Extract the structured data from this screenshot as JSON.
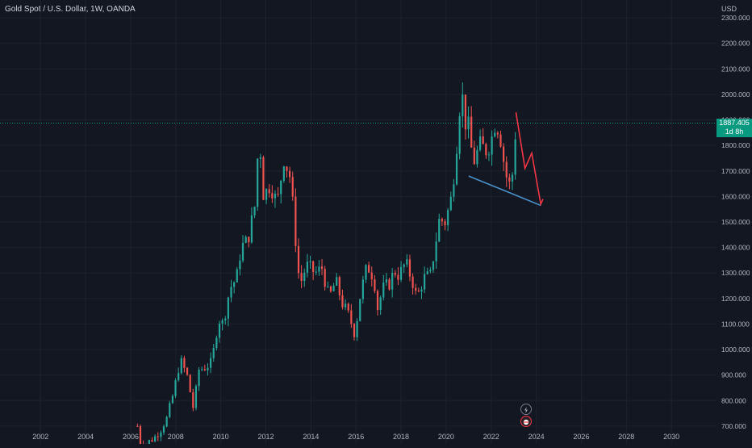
{
  "header": {
    "title": "Gold Spot / U.S. Dollar, 1W, OANDA",
    "currency": "USD"
  },
  "last_price": {
    "value": "1887.405",
    "countdown": "1d 8h",
    "level": 1887.405
  },
  "icons": {
    "lightning": "lightning-icon",
    "alert": "alert-icon"
  },
  "colors": {
    "up": "#26a69a",
    "down": "#ef5350",
    "tag": "#089981",
    "trend": "#4a90c8",
    "projection": "#f23645"
  },
  "chart_data": {
    "type": "line",
    "title": "Gold Spot / U.S. Dollar, 1W, OANDA",
    "ylabel": "USD",
    "xlim": [
      2000.2,
      2032.0
    ],
    "ylim": [
      630,
      2370
    ],
    "x_ticks": [
      "2002",
      "2004",
      "2006",
      "2008",
      "2010",
      "2012",
      "2014",
      "2016",
      "2018",
      "2020",
      "2022",
      "2024",
      "2026",
      "2028",
      "2030"
    ],
    "y_ticks": [
      "700.000",
      "800.000",
      "900.000",
      "1000.000",
      "1100.000",
      "1200.000",
      "1300.000",
      "1400.000",
      "1500.000",
      "1600.000",
      "1700.000",
      "1800.000",
      "1900.000",
      "2000.000",
      "2100.000",
      "2200.000",
      "2300.000"
    ],
    "series": [
      {
        "x": [
          2006.3,
          2006.4,
          2006.6,
          2006.8,
          2007.0,
          2007.3,
          2007.6,
          2007.9,
          2008.2,
          2008.5,
          2008.8,
          2009.0,
          2009.3,
          2009.6,
          2009.9,
          2010.1,
          2010.4,
          2010.7,
          2010.9,
          2011.2,
          2011.5,
          2011.7,
          2011.9,
          2012.2,
          2012.5,
          2012.8,
          2013.1,
          2013.3,
          2013.5,
          2013.8,
          2014.2,
          2014.5,
          2014.8,
          2015.1,
          2015.4,
          2015.7,
          2015.95,
          2016.2,
          2016.5,
          2016.8,
          2016.95,
          2017.2,
          2017.5,
          2017.7,
          2017.9,
          2018.2,
          2018.5,
          2018.7,
          2019.0,
          2019.3,
          2019.5,
          2019.7,
          2019.95,
          2020.2,
          2020.4,
          2020.6,
          2020.7,
          2020.8,
          2021.0,
          2021.2,
          2021.5,
          2021.8,
          2022.0,
          2022.2,
          2022.4,
          2022.6,
          2022.75,
          2022.9,
          2023.1
        ],
        "y": [
          700,
          640,
          620,
          640,
          650,
          680,
          730,
          830,
          960,
          900,
          760,
          920,
          930,
          950,
          1120,
          1100,
          1240,
          1280,
          1400,
          1430,
          1560,
          1850,
          1600,
          1650,
          1570,
          1750,
          1670,
          1450,
          1250,
          1330,
          1300,
          1320,
          1200,
          1270,
          1180,
          1130,
          1060,
          1220,
          1330,
          1280,
          1160,
          1240,
          1260,
          1310,
          1290,
          1340,
          1270,
          1200,
          1280,
          1290,
          1400,
          1510,
          1500,
          1580,
          1730,
          1950,
          2020,
          1900,
          1870,
          1730,
          1800,
          1780,
          1820,
          1900,
          1840,
          1710,
          1650,
          1640,
          1880
        ]
      }
    ],
    "trendline": {
      "x": [
        2021.0,
        2024.2
      ],
      "y": [
        1680,
        1565
      ]
    },
    "projection": {
      "x": [
        2023.1,
        2023.5,
        2023.8,
        2024.2,
        2024.3
      ],
      "y": [
        1930,
        1710,
        1770,
        1570,
        1590
      ]
    }
  }
}
